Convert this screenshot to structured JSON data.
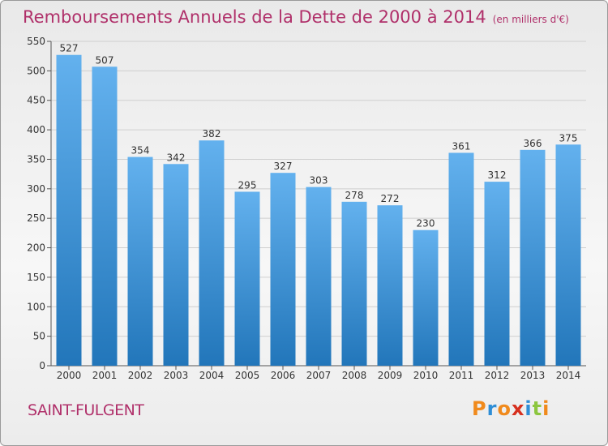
{
  "title": "Remboursements Annuels de la Dette de 2000 à 2014",
  "units": "(en milliers d'€)",
  "city": "SAINT-FULGENT",
  "logo": {
    "letters": [
      "P",
      "r",
      "o",
      "x",
      "i",
      "t",
      "i"
    ],
    "colors": [
      "#f08a1c",
      "#2f8ed6",
      "#f08a1c",
      "#d6301f",
      "#2f8ed6",
      "#8cc63f",
      "#f08a1c"
    ]
  },
  "colors": {
    "title": "#b0306a",
    "bar_light": "#63b1ee",
    "bar_dark": "#2276ba",
    "grid": "#cfcfcf"
  },
  "chart_data": {
    "type": "bar",
    "categories": [
      "2000",
      "2001",
      "2002",
      "2003",
      "2004",
      "2005",
      "2006",
      "2007",
      "2008",
      "2009",
      "2010",
      "2011",
      "2012",
      "2013",
      "2014"
    ],
    "values": [
      527,
      507,
      354,
      342,
      382,
      295,
      327,
      303,
      278,
      272,
      230,
      361,
      312,
      366,
      375
    ],
    "yticks": [
      0,
      50,
      100,
      150,
      200,
      250,
      300,
      350,
      400,
      450,
      500,
      550
    ],
    "ylim": [
      0,
      550
    ],
    "grid": true,
    "data_labels": true
  }
}
